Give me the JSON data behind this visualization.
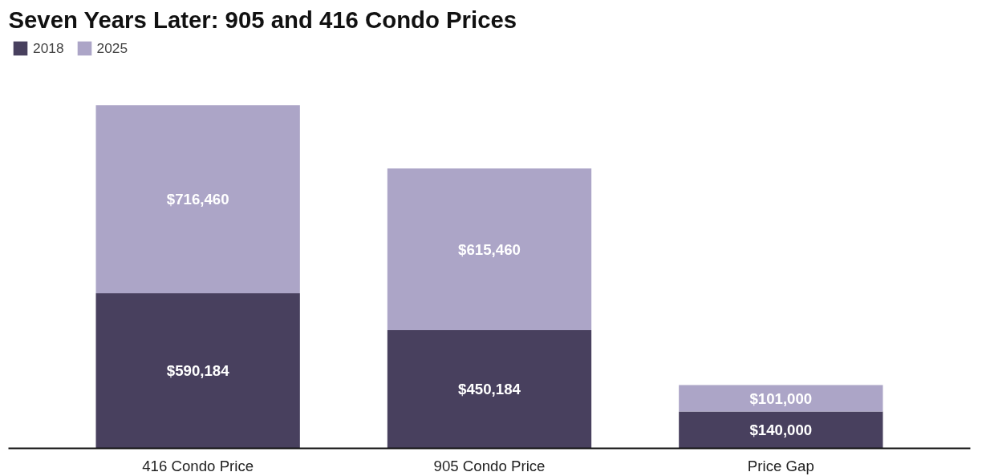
{
  "chart_data": {
    "type": "bar",
    "title": "Seven Years Later: 905 and 416 Condo Prices",
    "categories": [
      "416 Condo Price",
      "905 Condo Price",
      "Price Gap"
    ],
    "stacked": true,
    "legend": "top left",
    "grid": false,
    "series": [
      {
        "name": "2018",
        "color": "#48405e",
        "values": [
          590184,
          450184,
          140000
        ],
        "value_labels": [
          "$590,184",
          "$450,184",
          "$140,000"
        ]
      },
      {
        "name": "2025",
        "color": "#aca5c7",
        "values": [
          716460,
          615460,
          101000
        ],
        "value_labels": [
          "$716,460",
          "$615,460",
          "$101,000"
        ]
      }
    ]
  }
}
